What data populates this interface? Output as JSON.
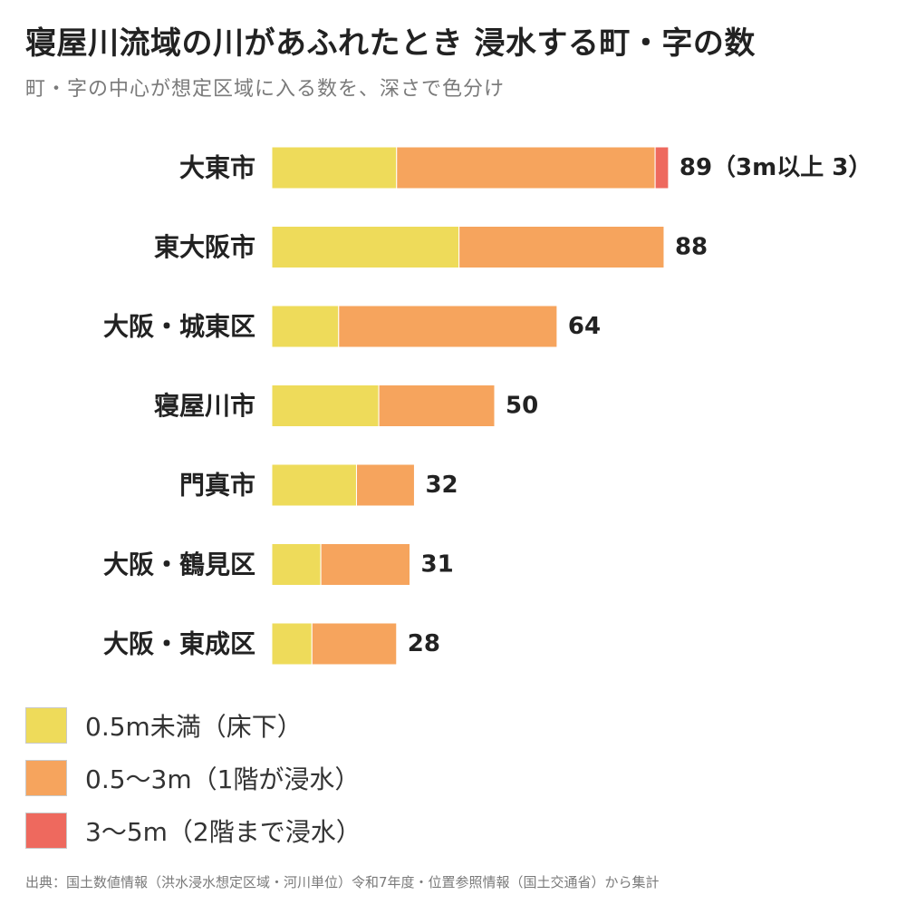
{
  "header": {
    "title": "寝屋川流域の川があふれたとき 浸水する町・字の数",
    "subtitle": "町・字の中心が想定区域に入る数を、深さで色分け"
  },
  "chart_data": {
    "type": "bar",
    "orientation": "horizontal",
    "stacked": true,
    "categories": [
      "大東市",
      "東大阪市",
      "大阪・城東区",
      "寝屋川市",
      "門真市",
      "大阪・鶴見区",
      "大阪・東成区"
    ],
    "series": [
      {
        "name": "0.5m未満（床下）",
        "color": "#eedb5a",
        "values": [
          28,
          42,
          15,
          24,
          19,
          11,
          9
        ]
      },
      {
        "name": "0.5〜3m（1階が浸水）",
        "color": "#f6a45d",
        "values": [
          58,
          46,
          49,
          26,
          13,
          20,
          19
        ]
      },
      {
        "name": "3〜5m（2階まで浸水）",
        "color": "#ee695e",
        "values": [
          3,
          0,
          0,
          0,
          0,
          0,
          0
        ]
      }
    ],
    "totals": [
      89,
      88,
      64,
      50,
      32,
      31,
      28
    ],
    "total_labels": [
      "89（3m以上 3）",
      "88",
      "64",
      "50",
      "32",
      "31",
      "28"
    ],
    "grid": false,
    "legend_position": "bottom-left"
  },
  "footer": {
    "source": "出典：国土数値情報（洪水浸水想定区域・河川単位）令和7年度・位置参照情報（国土交通省）から集計"
  }
}
